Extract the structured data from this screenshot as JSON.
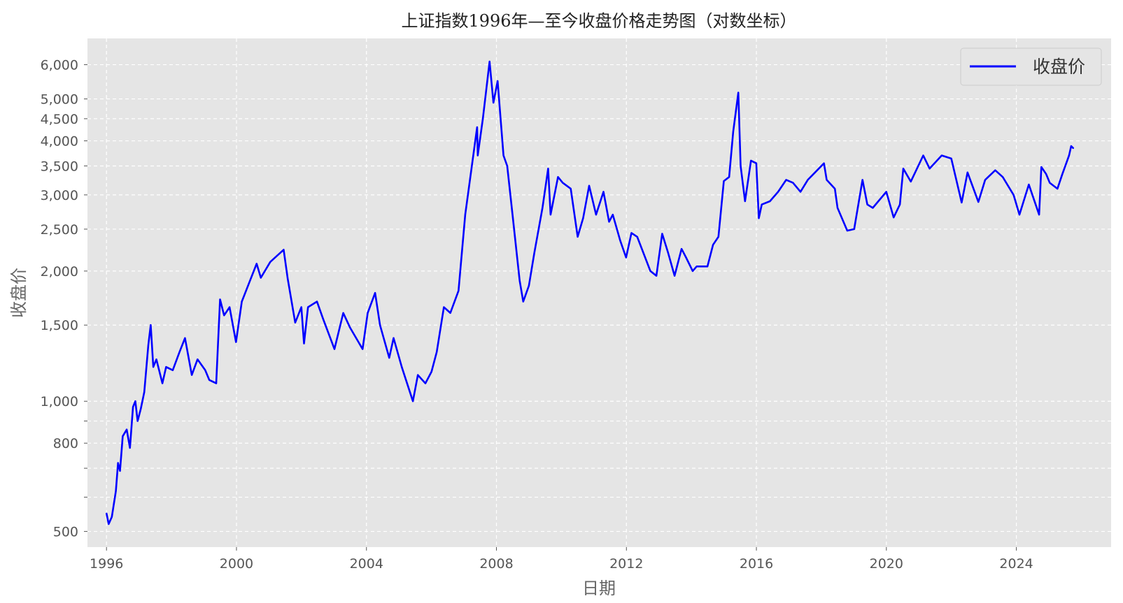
{
  "chart_data": {
    "type": "line",
    "title": "上证指数1996年—至今收盘价格走势图（对数坐标）",
    "xlabel": "日期",
    "ylabel": "收盘价",
    "y_scale": "log",
    "xlim": [
      "1995-06-01",
      "2026-12-01"
    ],
    "ylim": [
      460,
      6900
    ],
    "grid": true,
    "legend_placement": "top-right",
    "colors": {
      "series": "#0000ff",
      "plot_bg": "#e5e5e5",
      "grid": "#ffffff"
    },
    "x_ticks": [
      {
        "date": "1996-01-01",
        "label": "1996"
      },
      {
        "date": "2000-01-01",
        "label": "2000"
      },
      {
        "date": "2004-01-01",
        "label": "2004"
      },
      {
        "date": "2008-01-01",
        "label": "2008"
      },
      {
        "date": "2012-01-01",
        "label": "2012"
      },
      {
        "date": "2016-01-01",
        "label": "2016"
      },
      {
        "date": "2020-01-01",
        "label": "2020"
      },
      {
        "date": "2024-01-01",
        "label": "2024"
      }
    ],
    "y_ticks": [
      {
        "value": 500,
        "label": "500"
      },
      {
        "value": 600,
        "label": ""
      },
      {
        "value": 700,
        "label": ""
      },
      {
        "value": 800,
        "label": "800"
      },
      {
        "value": 900,
        "label": ""
      },
      {
        "value": 1000,
        "label": "1,000"
      },
      {
        "value": 1500,
        "label": "1,500"
      },
      {
        "value": 2000,
        "label": "2,000"
      },
      {
        "value": 2500,
        "label": "2,500"
      },
      {
        "value": 3000,
        "label": "3,000"
      },
      {
        "value": 3500,
        "label": "3,500"
      },
      {
        "value": 4000,
        "label": "4,000"
      },
      {
        "value": 4500,
        "label": "4,500"
      },
      {
        "value": 5000,
        "label": "5,000"
      },
      {
        "value": 6000,
        "label": "6,000"
      }
    ],
    "series": [
      {
        "name": "收盘价",
        "points": [
          [
            "1996-01-02",
            550
          ],
          [
            "1996-01-25",
            520
          ],
          [
            "1996-03-01",
            540
          ],
          [
            "1996-04-15",
            620
          ],
          [
            "1996-05-10",
            720
          ],
          [
            "1996-06-01",
            690
          ],
          [
            "1996-07-01",
            830
          ],
          [
            "1996-08-15",
            860
          ],
          [
            "1996-09-20",
            780
          ],
          [
            "1996-10-25",
            970
          ],
          [
            "1996-11-20",
            1000
          ],
          [
            "1996-12-16",
            900
          ],
          [
            "1997-01-20",
            960
          ],
          [
            "1997-03-01",
            1050
          ],
          [
            "1997-04-15",
            1350
          ],
          [
            "1997-05-12",
            1500
          ],
          [
            "1997-06-10",
            1200
          ],
          [
            "1997-07-15",
            1250
          ],
          [
            "1997-09-20",
            1100
          ],
          [
            "1997-11-01",
            1200
          ],
          [
            "1998-01-15",
            1180
          ],
          [
            "1998-04-01",
            1300
          ],
          [
            "1998-06-01",
            1400
          ],
          [
            "1998-08-17",
            1150
          ],
          [
            "1998-10-20",
            1250
          ],
          [
            "1999-01-15",
            1180
          ],
          [
            "1999-03-01",
            1120
          ],
          [
            "1999-05-18",
            1100
          ],
          [
            "1999-06-30",
            1720
          ],
          [
            "1999-08-15",
            1580
          ],
          [
            "1999-10-15",
            1650
          ],
          [
            "1999-12-27",
            1370
          ],
          [
            "2000-03-01",
            1700
          ],
          [
            "2000-06-01",
            1900
          ],
          [
            "2000-08-15",
            2080
          ],
          [
            "2000-10-01",
            1930
          ],
          [
            "2001-01-15",
            2100
          ],
          [
            "2001-06-14",
            2240
          ],
          [
            "2001-07-30",
            1920
          ],
          [
            "2001-10-22",
            1520
          ],
          [
            "2001-12-30",
            1650
          ],
          [
            "2002-01-29",
            1360
          ],
          [
            "2002-03-15",
            1650
          ],
          [
            "2002-06-24",
            1700
          ],
          [
            "2002-09-01",
            1550
          ],
          [
            "2003-01-06",
            1320
          ],
          [
            "2003-04-15",
            1600
          ],
          [
            "2003-07-01",
            1480
          ],
          [
            "2003-11-18",
            1320
          ],
          [
            "2004-01-15",
            1600
          ],
          [
            "2004-04-07",
            1780
          ],
          [
            "2004-06-01",
            1500
          ],
          [
            "2004-09-13",
            1260
          ],
          [
            "2004-11-01",
            1400
          ],
          [
            "2005-02-01",
            1200
          ],
          [
            "2005-06-06",
            1000
          ],
          [
            "2005-08-01",
            1150
          ],
          [
            "2005-10-25",
            1100
          ],
          [
            "2006-01-01",
            1170
          ],
          [
            "2006-03-01",
            1300
          ],
          [
            "2006-05-20",
            1650
          ],
          [
            "2006-08-01",
            1600
          ],
          [
            "2006-11-01",
            1800
          ],
          [
            "2007-01-15",
            2700
          ],
          [
            "2007-05-29",
            4300
          ],
          [
            "2007-06-05",
            3700
          ],
          [
            "2007-08-01",
            4500
          ],
          [
            "2007-10-16",
            6100
          ],
          [
            "2007-11-28",
            4900
          ],
          [
            "2008-01-14",
            5500
          ],
          [
            "2008-03-20",
            3700
          ],
          [
            "2008-05-01",
            3500
          ],
          [
            "2008-06-30",
            2700
          ],
          [
            "2008-09-18",
            1900
          ],
          [
            "2008-10-28",
            1700
          ],
          [
            "2008-12-31",
            1850
          ],
          [
            "2009-03-01",
            2200
          ],
          [
            "2009-06-01",
            2800
          ],
          [
            "2009-08-04",
            3450
          ],
          [
            "2009-09-01",
            2700
          ],
          [
            "2009-11-23",
            3300
          ],
          [
            "2010-01-15",
            3200
          ],
          [
            "2010-04-15",
            3100
          ],
          [
            "2010-07-02",
            2400
          ],
          [
            "2010-09-01",
            2650
          ],
          [
            "2010-11-08",
            3150
          ],
          [
            "2011-01-25",
            2700
          ],
          [
            "2011-04-18",
            3050
          ],
          [
            "2011-06-20",
            2600
          ],
          [
            "2011-08-01",
            2700
          ],
          [
            "2011-10-24",
            2350
          ],
          [
            "2011-12-28",
            2150
          ],
          [
            "2012-02-27",
            2450
          ],
          [
            "2012-05-01",
            2400
          ],
          [
            "2012-09-26",
            2000
          ],
          [
            "2012-12-03",
            1950
          ],
          [
            "2013-02-06",
            2440
          ],
          [
            "2013-04-15",
            2200
          ],
          [
            "2013-06-25",
            1950
          ],
          [
            "2013-09-12",
            2250
          ],
          [
            "2013-11-01",
            2150
          ],
          [
            "2014-01-15",
            2000
          ],
          [
            "2014-03-01",
            2050
          ],
          [
            "2014-06-30",
            2050
          ],
          [
            "2014-09-01",
            2300
          ],
          [
            "2014-10-31",
            2400
          ],
          [
            "2014-12-31",
            3230
          ],
          [
            "2015-03-01",
            3300
          ],
          [
            "2015-04-15",
            4200
          ],
          [
            "2015-06-12",
            5170
          ],
          [
            "2015-07-08",
            3500
          ],
          [
            "2015-08-26",
            2900
          ],
          [
            "2015-11-01",
            3600
          ],
          [
            "2015-12-31",
            3550
          ],
          [
            "2016-01-28",
            2650
          ],
          [
            "2016-03-01",
            2850
          ],
          [
            "2016-06-01",
            2900
          ],
          [
            "2016-09-01",
            3050
          ],
          [
            "2016-12-01",
            3250
          ],
          [
            "2017-02-15",
            3200
          ],
          [
            "2017-05-11",
            3050
          ],
          [
            "2017-08-01",
            3250
          ],
          [
            "2017-11-14",
            3420
          ],
          [
            "2018-01-29",
            3550
          ],
          [
            "2018-03-01",
            3250
          ],
          [
            "2018-06-01",
            3100
          ],
          [
            "2018-07-01",
            2800
          ],
          [
            "2018-10-18",
            2480
          ],
          [
            "2019-01-04",
            2500
          ],
          [
            "2019-04-08",
            3250
          ],
          [
            "2019-06-01",
            2850
          ],
          [
            "2019-08-01",
            2800
          ],
          [
            "2019-12-31",
            3050
          ],
          [
            "2020-03-23",
            2660
          ],
          [
            "2020-06-01",
            2850
          ],
          [
            "2020-07-09",
            3450
          ],
          [
            "2020-10-01",
            3220
          ],
          [
            "2021-02-18",
            3700
          ],
          [
            "2021-05-01",
            3450
          ],
          [
            "2021-09-14",
            3700
          ],
          [
            "2021-12-31",
            3640
          ],
          [
            "2022-04-26",
            2880
          ],
          [
            "2022-07-01",
            3380
          ],
          [
            "2022-10-31",
            2890
          ],
          [
            "2023-01-15",
            3250
          ],
          [
            "2023-05-09",
            3420
          ],
          [
            "2023-08-01",
            3300
          ],
          [
            "2023-12-01",
            3000
          ],
          [
            "2024-02-05",
            2700
          ],
          [
            "2024-05-20",
            3170
          ],
          [
            "2024-09-13",
            2700
          ],
          [
            "2024-10-08",
            3480
          ],
          [
            "2024-12-01",
            3350
          ],
          [
            "2025-01-10",
            3200
          ],
          [
            "2025-04-07",
            3100
          ],
          [
            "2025-06-01",
            3350
          ],
          [
            "2025-08-15",
            3700
          ],
          [
            "2025-09-08",
            3890
          ],
          [
            "2025-09-30",
            3850
          ]
        ]
      }
    ]
  }
}
